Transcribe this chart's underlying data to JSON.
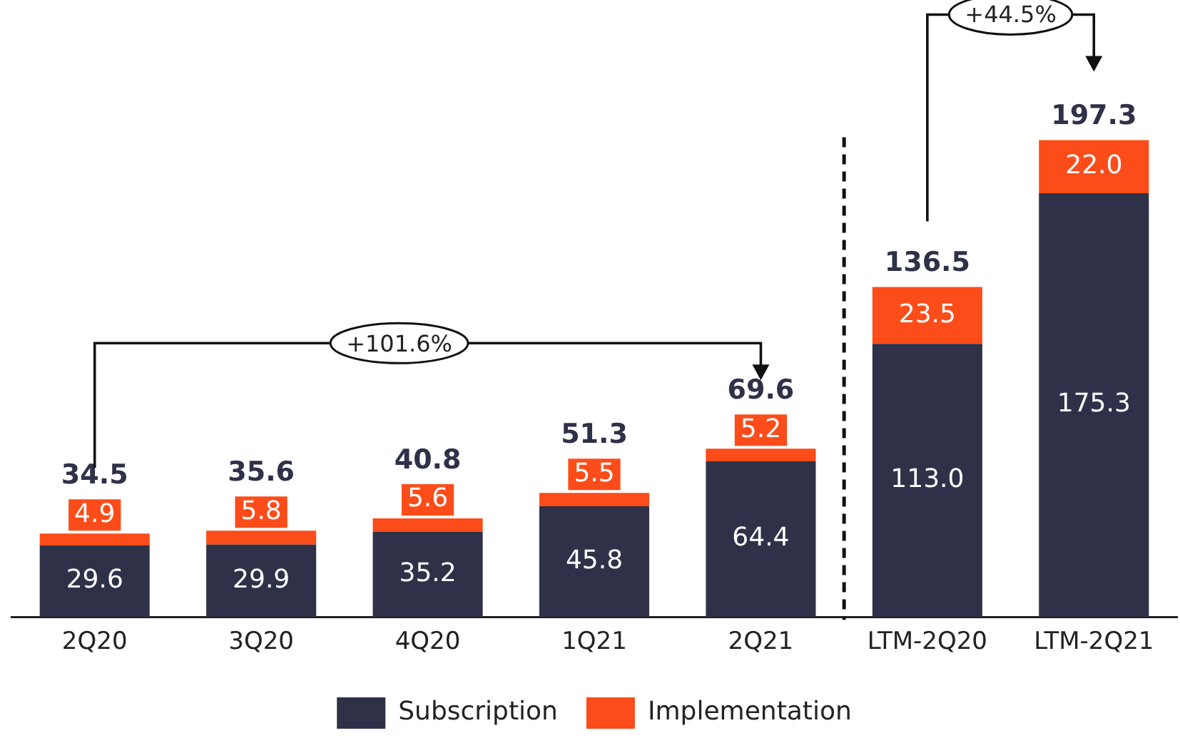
{
  "chart_data": {
    "type": "bar",
    "stacked": true,
    "categories": [
      "2Q20",
      "3Q20",
      "4Q20",
      "1Q21",
      "2Q21",
      "LTM-2Q20",
      "LTM-2Q21"
    ],
    "series": [
      {
        "name": "Subscription",
        "color": "#2e3148",
        "values": [
          29.6,
          29.9,
          35.2,
          45.8,
          64.4,
          113.0,
          175.3
        ],
        "value_labels": [
          "29.6",
          "29.9",
          "35.2",
          "45.8",
          "64.4",
          "113.0",
          "175.3"
        ]
      },
      {
        "name": "Implementation",
        "color": "#fc4c1a",
        "values": [
          4.9,
          5.8,
          5.6,
          5.5,
          5.2,
          23.5,
          22.0
        ],
        "value_labels": [
          "4.9",
          "5.8",
          "5.6",
          "5.5",
          "5.2",
          "23.5",
          "22.0"
        ]
      }
    ],
    "totals": [
      "34.5",
      "35.6",
      "40.8",
      "51.3",
      "69.6",
      "136.5",
      "197.3"
    ],
    "annotations": [
      "+101.6%",
      "+44.5%"
    ],
    "grid": false,
    "legend": "bottom"
  }
}
